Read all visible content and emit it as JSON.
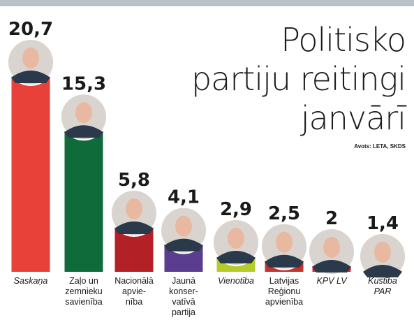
{
  "title_lines": [
    "Politisko",
    "partiju reitingi",
    "janvārī"
  ],
  "source": "Avots: LETA, SKDS",
  "chart_data": {
    "type": "bar",
    "title": "Politisko partiju reitingi janvārī",
    "xlabel": "",
    "ylabel": "",
    "ylim": [
      0,
      20.7
    ],
    "categories": [
      "Saskaņa",
      "Zaļo un zemnieku savienība",
      "Nacionālā apvienība",
      "Jaunā konservatīvā partija",
      "Vienotība",
      "Latvijas Reģionu apvienība",
      "KPV LV",
      "Kustība PAR"
    ],
    "category_labels": [
      "Saskaņa",
      "Zaļo un\nzemnieku\nsavienība",
      "Nacionālā\napvie-\nnība",
      "Jaunā\nkonser-\nvatīvā\npartija",
      "Vienotība",
      "Latvijas\nReģionu\napvienība",
      "KPV LV",
      "Kustība\nPAR"
    ],
    "values": [
      20.7,
      15.3,
      5.8,
      4.1,
      2.9,
      2.5,
      2,
      1.4
    ],
    "value_labels": [
      "20,7",
      "15,3",
      "5,8",
      "4,1",
      "2,9",
      "2,5",
      "2",
      "1,4"
    ],
    "italic_labels": [
      true,
      false,
      false,
      false,
      true,
      false,
      true,
      true
    ],
    "colors": [
      "#e8413a",
      "#0f6b3a",
      "#b32126",
      "#5a3d8e",
      "#b5cc2a",
      "#c4332e",
      "#e52521",
      "#f5c21a"
    ]
  }
}
